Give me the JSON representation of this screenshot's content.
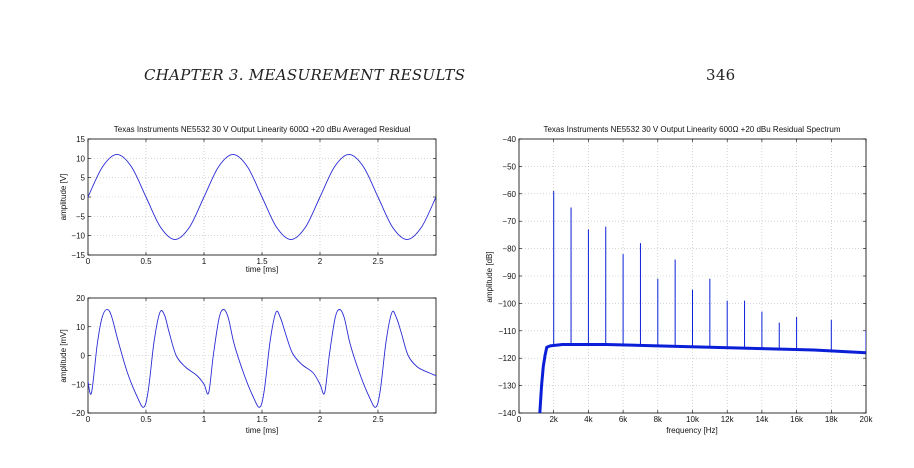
{
  "header": {
    "chapter": "CHAPTER 3.   MEASUREMENT RESULTS",
    "page_number": "346"
  },
  "chart_data": [
    {
      "type": "line",
      "title": "Texas Instruments NE5532 30 V Output Linearity 600Ω +20 dBu Averaged Residual",
      "xlabel": "time [ms]",
      "ylabel": "amplitude [V]",
      "xlim": [
        0,
        3
      ],
      "ylim": [
        -15,
        15
      ],
      "xticks": [
        0,
        0.5,
        1,
        1.5,
        2,
        2.5
      ],
      "yticks": [
        -15,
        -10,
        -5,
        0,
        5,
        10,
        15
      ],
      "xtick_labels": [
        "0",
        "0.5",
        "1",
        "1.5",
        "2",
        "2.5"
      ],
      "ytick_labels": [
        "−15",
        "−10",
        "−5",
        "0",
        "5",
        "10",
        "15"
      ],
      "grid": true,
      "color": "#2b2bd6",
      "series": [
        {
          "x": [
            0,
            0.125,
            0.25,
            0.375,
            0.5,
            0.625,
            0.75,
            0.875,
            1.0,
            1.125,
            1.25,
            1.375,
            1.5,
            1.625,
            1.75,
            1.875,
            2.0,
            2.125,
            2.25,
            2.375,
            2.5,
            2.625,
            2.75,
            2.875,
            3.0
          ],
          "y": [
            0,
            7.8,
            11,
            7.8,
            0,
            -7.8,
            -11,
            -7.8,
            0,
            7.8,
            11,
            7.8,
            0,
            -7.8,
            -11,
            -7.8,
            0,
            7.8,
            11,
            7.8,
            0,
            -7.8,
            -11,
            -7.8,
            0
          ]
        }
      ]
    },
    {
      "type": "line",
      "title": "",
      "xlabel": "time [ms]",
      "ylabel": "amplitude [mV]",
      "xlim": [
        0,
        3
      ],
      "ylim": [
        -20,
        20
      ],
      "xticks": [
        0,
        0.5,
        1,
        1.5,
        2,
        2.5
      ],
      "yticks": [
        -20,
        -10,
        0,
        10,
        20
      ],
      "xtick_labels": [
        "0",
        "0.5",
        "1",
        "1.5",
        "2",
        "2.5"
      ],
      "ytick_labels": [
        "−20",
        "−10",
        "0",
        "10",
        "20"
      ],
      "grid": true,
      "color": "#2b2bd6",
      "series": [
        {
          "x": [
            0,
            0.03,
            0.08,
            0.12,
            0.16,
            0.2,
            0.26,
            0.34,
            0.42,
            0.48,
            0.52,
            0.57,
            0.62,
            0.66,
            0.7,
            0.76,
            0.84,
            0.94,
            1.0,
            1.04,
            1.08,
            1.13,
            1.17,
            1.21,
            1.26,
            1.34,
            1.42,
            1.48,
            1.52,
            1.57,
            1.62,
            1.66,
            1.7,
            1.76,
            1.84,
            1.94,
            2.0,
            2.04,
            2.08,
            2.13,
            2.17,
            2.21,
            2.26,
            2.34,
            2.42,
            2.48,
            2.52,
            2.57,
            2.62,
            2.66,
            2.7,
            2.76,
            2.84,
            2.94,
            3.0
          ],
          "y": [
            -9,
            -13,
            4,
            13,
            16,
            14,
            5,
            -6,
            -14,
            -18,
            -12,
            5,
            15,
            14,
            8,
            0,
            -4,
            -7,
            -10,
            -13,
            0,
            13,
            16,
            13,
            4,
            -6,
            -14,
            -18,
            -12,
            5,
            15,
            13,
            8,
            1,
            -3,
            -6,
            -10,
            -13,
            0,
            13,
            16,
            13,
            4,
            -6,
            -14,
            -18,
            -12,
            5,
            15,
            13,
            8,
            0,
            -4,
            -6,
            -7
          ]
        }
      ]
    },
    {
      "type": "line",
      "title": "Texas Instruments NE5532 30 V Output Linearity 600Ω +20 dBu Residual Spectrum",
      "xlabel": "frequency [Hz]",
      "ylabel": "amplitude [dB]",
      "xlim": [
        0,
        20000
      ],
      "ylim": [
        -140,
        -40
      ],
      "xticks": [
        0,
        2000,
        4000,
        6000,
        8000,
        10000,
        12000,
        14000,
        16000,
        18000,
        20000
      ],
      "yticks": [
        -140,
        -130,
        -120,
        -110,
        -100,
        -90,
        -80,
        -70,
        -60,
        -50,
        -40
      ],
      "xtick_labels": [
        "0",
        "2k",
        "4k",
        "6k",
        "8k",
        "10k",
        "12k",
        "14k",
        "16k",
        "18k",
        "20k"
      ],
      "ytick_labels": [
        "−140",
        "−130",
        "−120",
        "−110",
        "−100",
        "−90",
        "−80",
        "−70",
        "−60",
        "−50",
        "−40"
      ],
      "grid": true,
      "color": "#0b1fd8",
      "noise_floor": {
        "x": [
          1200,
          1300,
          1400,
          1500,
          1600,
          1800,
          2500,
          5000,
          8000,
          11000,
          14000,
          17000,
          20000
        ],
        "y": [
          -140,
          -130,
          -123,
          -119,
          -116,
          -115.5,
          -115,
          -115,
          -115.5,
          -116,
          -116.5,
          -117,
          -118
        ]
      },
      "harmonics": {
        "x": [
          2000,
          3000,
          4000,
          5000,
          6000,
          7000,
          8000,
          9000,
          10000,
          11000,
          12000,
          13000,
          14000,
          15000,
          16000,
          18000,
          20000
        ],
        "y": [
          -59,
          -65,
          -73,
          -72,
          -82,
          -78,
          -91,
          -84,
          -95,
          -91,
          -99,
          -99,
          -103,
          -107,
          -105,
          -106,
          -110
        ]
      }
    }
  ]
}
